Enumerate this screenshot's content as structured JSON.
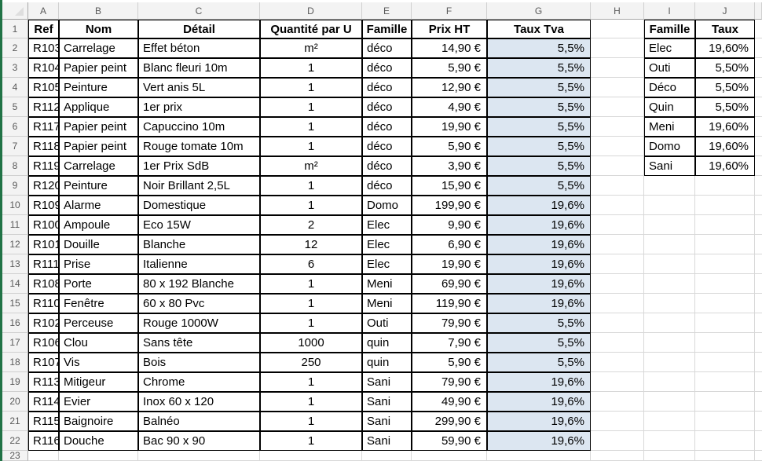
{
  "app": {
    "kind": "spreadsheet",
    "colors": {
      "excel_green": "#217346",
      "tva_cell_fill": "#DCE6F1",
      "table_border": "#000000",
      "gridline": "#D8D8D8",
      "header_bg": "#F3F3F3"
    }
  },
  "sheet": {
    "column_headers": [
      "A",
      "B",
      "C",
      "D",
      "E",
      "F",
      "G",
      "H",
      "I",
      "J"
    ],
    "row_numbers": [
      "1",
      "2",
      "3",
      "4",
      "5",
      "6",
      "7",
      "8",
      "9",
      "10",
      "11",
      "12",
      "13",
      "14",
      "15",
      "16",
      "17",
      "18",
      "19",
      "20",
      "21",
      "22",
      "23"
    ],
    "main_table": {
      "range": "A1:G22",
      "headers": [
        "Ref",
        "Nom",
        "Détail",
        "Quantité par U",
        "Famille",
        "Prix HT",
        "Taux Tva"
      ],
      "rows": [
        [
          "R103",
          "Carrelage",
          "Effet béton",
          "m²",
          "déco",
          "14,90 €",
          "5,5%"
        ],
        [
          "R104",
          "Papier peint",
          "Blanc fleuri 10m",
          "1",
          "déco",
          "5,90 €",
          "5,5%"
        ],
        [
          "R105",
          "Peinture",
          "Vert anis 5L",
          "1",
          "déco",
          "12,90 €",
          "5,5%"
        ],
        [
          "R112",
          "Applique",
          "1er prix",
          "1",
          "déco",
          "4,90 €",
          "5,5%"
        ],
        [
          "R117",
          "Papier peint",
          "Capuccino 10m",
          "1",
          "déco",
          "19,90 €",
          "5,5%"
        ],
        [
          "R118",
          "Papier peint",
          "Rouge tomate 10m",
          "1",
          "déco",
          "5,90 €",
          "5,5%"
        ],
        [
          "R119",
          "Carrelage",
          "1er Prix SdB",
          "m²",
          "déco",
          "3,90 €",
          "5,5%"
        ],
        [
          "R120",
          "Peinture",
          "Noir Brillant 2,5L",
          "1",
          "déco",
          "15,90 €",
          "5,5%"
        ],
        [
          "R109",
          "Alarme",
          "Domestique",
          "1",
          "Domo",
          "199,90 €",
          "19,6%"
        ],
        [
          "R100",
          "Ampoule",
          "Eco 15W",
          "2",
          "Elec",
          "9,90 €",
          "19,6%"
        ],
        [
          "R101",
          "Douille",
          "Blanche",
          "12",
          "Elec",
          "6,90 €",
          "19,6%"
        ],
        [
          "R111",
          "Prise",
          "Italienne",
          "6",
          "Elec",
          "19,90 €",
          "19,6%"
        ],
        [
          "R108",
          "Porte",
          "80 x 192 Blanche",
          "1",
          "Meni",
          "69,90 €",
          "19,6%"
        ],
        [
          "R110",
          "Fenêtre",
          "60 x 80 Pvc",
          "1",
          "Meni",
          "119,90 €",
          "19,6%"
        ],
        [
          "R102",
          "Perceuse",
          "Rouge 1000W",
          "1",
          "Outi",
          "79,90 €",
          "5,5%"
        ],
        [
          "R106",
          "Clou",
          "Sans tête",
          "1000",
          "quin",
          "7,90 €",
          "5,5%"
        ],
        [
          "R107",
          "Vis",
          "Bois",
          "250",
          "quin",
          "5,90 €",
          "5,5%"
        ],
        [
          "R113",
          "Mitigeur",
          "Chrome",
          "1",
          "Sani",
          "79,90 €",
          "19,6%"
        ],
        [
          "R114",
          "Evier",
          "Inox 60 x 120",
          "1",
          "Sani",
          "49,90 €",
          "19,6%"
        ],
        [
          "R115",
          "Baignoire",
          "Balnéo",
          "1",
          "Sani",
          "299,90 €",
          "19,6%"
        ],
        [
          "R116",
          "Douche",
          "Bac 90 x 90",
          "1",
          "Sani",
          "59,90 €",
          "19,6%"
        ]
      ]
    },
    "lookup_table": {
      "range": "I1:J8",
      "headers": [
        "Famille",
        "Taux"
      ],
      "rows": [
        [
          "Elec",
          "19,60%"
        ],
        [
          "Outi",
          "5,50%"
        ],
        [
          "Déco",
          "5,50%"
        ],
        [
          "Quin",
          "5,50%"
        ],
        [
          "Meni",
          "19,60%"
        ],
        [
          "Domo",
          "19,60%"
        ],
        [
          "Sani",
          "19,60%"
        ]
      ]
    }
  }
}
